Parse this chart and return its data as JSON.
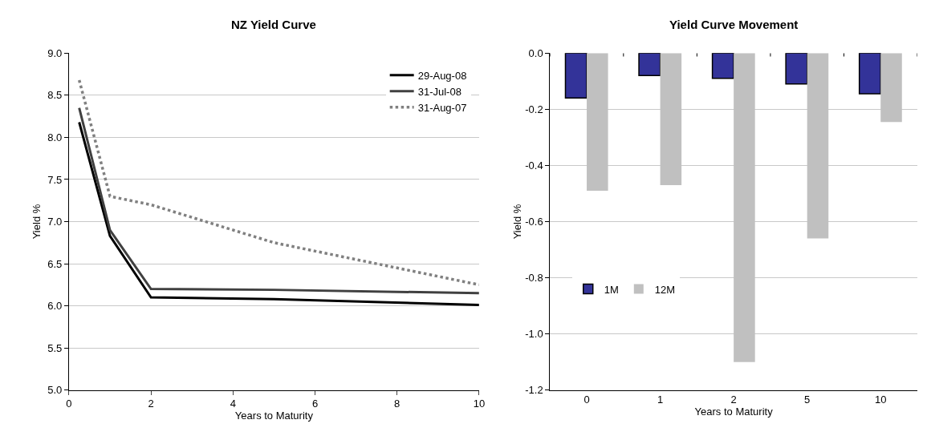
{
  "chart_data": [
    {
      "type": "line",
      "title": "NZ Yield Curve",
      "xlabel": "Years to Maturity",
      "ylabel": "Yield %",
      "x": [
        0.25,
        1,
        2,
        5,
        10
      ],
      "series": [
        {
          "name": "29-Aug-08",
          "color": "#000000",
          "values": [
            8.18,
            6.83,
            6.1,
            6.08,
            6.01
          ],
          "line_style": "solid"
        },
        {
          "name": "31-Jul-08",
          "color": "#404040",
          "values": [
            8.35,
            6.9,
            6.2,
            6.19,
            6.15
          ],
          "line_style": "solid"
        },
        {
          "name": "31-Aug-07",
          "color": "#808080",
          "values": [
            8.68,
            7.3,
            7.2,
            6.75,
            6.25
          ],
          "line_style": "dotted"
        }
      ],
      "xlim": [
        0,
        10
      ],
      "xticks": [
        0,
        2,
        4,
        6,
        8,
        10
      ],
      "ylim": [
        5.0,
        9.0
      ],
      "yticks": [
        {
          "value": 5,
          "label": "5.0"
        },
        5.5,
        {
          "value": 6,
          "label": "6.0"
        },
        6.5,
        {
          "value": 7,
          "label": "7.0"
        },
        7.5,
        {
          "value": 8,
          "label": "8.0"
        },
        8.5,
        {
          "value": 9,
          "label": "9.0"
        }
      ],
      "grid": "y",
      "legend": "top right",
      "marker": "none"
    },
    {
      "type": "bar",
      "title": "Yield Curve Movement",
      "xlabel": "Years to Maturity",
      "ylabel": "Yield %",
      "categories": [
        "0",
        "1",
        "2",
        "5",
        "10"
      ],
      "series": [
        {
          "name": "1M",
          "color": "#333399",
          "values": [
            -0.16,
            -0.08,
            -0.09,
            -0.11,
            -0.145
          ]
        },
        {
          "name": "12M",
          "color": "#c0c0c0",
          "values": [
            -0.49,
            -0.47,
            -1.1,
            -0.66,
            -0.245
          ]
        }
      ],
      "ylim": [
        -1.2,
        0.0
      ],
      "yticks": [
        {
          "value": -1.2,
          "label": "-1.2"
        },
        {
          "value": -1.0,
          "label": "-1.0"
        },
        {
          "value": -0.8,
          "label": "-0.8"
        },
        {
          "value": -0.6,
          "label": "-0.6"
        },
        {
          "value": -0.4,
          "label": "-0.4"
        },
        {
          "value": -0.2,
          "label": "-0.2"
        },
        {
          "value": 0,
          "label": "0.0"
        }
      ],
      "grid": "y",
      "legend": "left"
    }
  ]
}
